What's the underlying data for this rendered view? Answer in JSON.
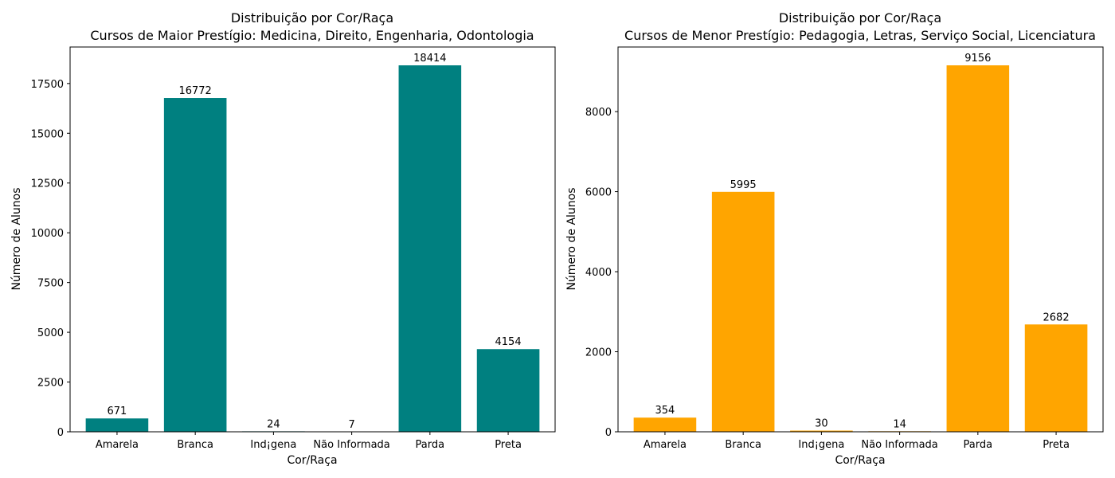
{
  "chart_data": [
    {
      "type": "bar",
      "title": "Distribuição por Cor/Raça",
      "subtitle": "Cursos de Maior Prestígio: Medicina, Direito, Engenharia, Odontologia",
      "xlabel": "Cor/Raça",
      "ylabel": "Número de Alunos",
      "categories": [
        "Amarela",
        "Branca",
        "Ind¡gena",
        "Não Informada",
        "Parda",
        "Preta"
      ],
      "values": [
        671,
        16772,
        24,
        7,
        18414,
        4154
      ],
      "data_labels": [
        "671",
        "16772",
        "24",
        "7",
        "18414",
        "4154"
      ],
      "yticks": [
        0,
        2500,
        5000,
        7500,
        10000,
        12500,
        15000,
        17500
      ],
      "ytick_labels": [
        "0",
        "2500",
        "5000",
        "7500",
        "10000",
        "12500",
        "15000",
        "17500"
      ],
      "ylim": [
        0,
        19334.7
      ],
      "color": "#008080",
      "grid": false,
      "legend": "none"
    },
    {
      "type": "bar",
      "title": "Distribuição por Cor/Raça",
      "subtitle": "Cursos de Menor Prestígio: Pedagogia, Letras, Serviço Social, Licenciatura",
      "xlabel": "Cor/Raça",
      "ylabel": "Número de Alunos",
      "categories": [
        "Amarela",
        "Branca",
        "Ind¡gena",
        "Não Informada",
        "Parda",
        "Preta"
      ],
      "values": [
        354,
        5995,
        30,
        14,
        9156,
        2682
      ],
      "data_labels": [
        "354",
        "5995",
        "30",
        "14",
        "9156",
        "2682"
      ],
      "yticks": [
        0,
        2000,
        4000,
        6000,
        8000
      ],
      "ytick_labels": [
        "0",
        "2000",
        "4000",
        "6000",
        "8000"
      ],
      "ylim": [
        0,
        9613.8
      ],
      "color": "#FFA500",
      "grid": false,
      "legend": "none"
    }
  ]
}
